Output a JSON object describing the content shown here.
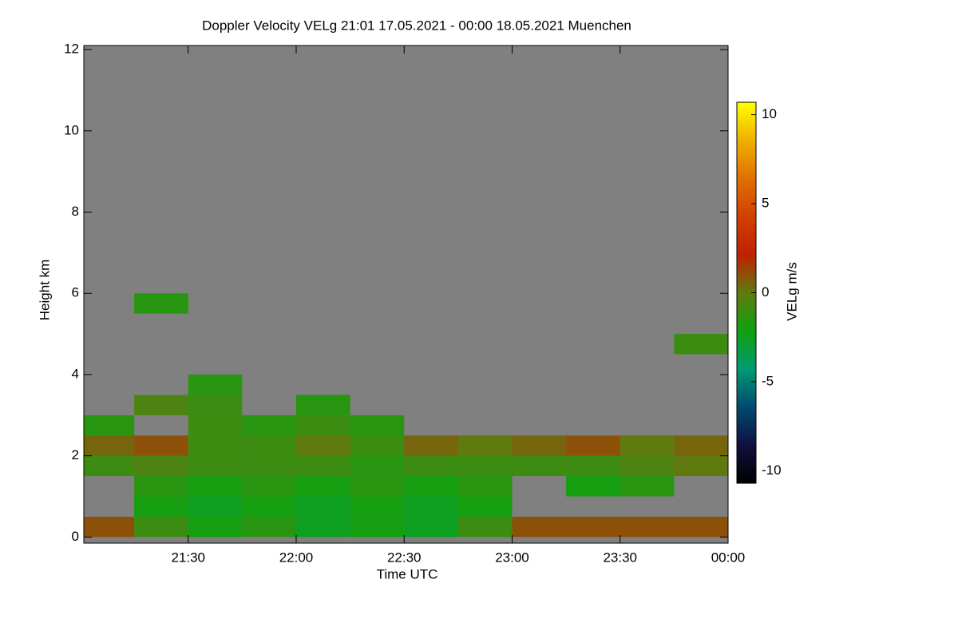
{
  "chart_data": {
    "type": "heatmap",
    "title": "Doppler Velocity VELg   21:01 17.05.2021 - 00:00 18.05.2021 Muenchen",
    "xlabel": "Time UTC",
    "ylabel": "Height km",
    "colorbar_label": "VELg m/s",
    "xlim": [
      21.0167,
      24
    ],
    "ylim": [
      -0.15,
      12.1
    ],
    "xticks": [
      {
        "value": 21.5,
        "label": "21:30"
      },
      {
        "value": 22,
        "label": "22:00"
      },
      {
        "value": 22.5,
        "label": "22:30"
      },
      {
        "value": 23,
        "label": "23:00"
      },
      {
        "value": 23.5,
        "label": "23:30"
      },
      {
        "value": 24,
        "label": "00:00"
      }
    ],
    "yticks": [
      0,
      2,
      4,
      6,
      8,
      10,
      12
    ],
    "xbins": [
      21.0167,
      21.25,
      21.5,
      21.75,
      22,
      22.25,
      22.5,
      22.75,
      23,
      23.25,
      23.5,
      23.75,
      24
    ],
    "ybins": [
      0,
      0.5,
      1,
      1.5,
      2,
      2.5,
      3,
      3.5,
      4,
      4.5,
      5,
      5.5,
      6
    ],
    "z": [
      [
        1,
        -1,
        -2,
        -1.5,
        -2.5,
        -2,
        -2.5,
        -1,
        1,
        1,
        1,
        1
      ],
      [
        null,
        -2,
        -2.5,
        -2,
        -2.5,
        -2,
        -2.5,
        -2,
        null,
        null,
        null,
        null
      ],
      [
        null,
        -1.5,
        -2,
        -1.5,
        -2,
        -1.5,
        -2,
        -1.5,
        null,
        -2,
        -1.5,
        null
      ],
      [
        -1,
        -0.5,
        -1,
        -1,
        -1,
        -1.5,
        -1,
        -1,
        -1,
        -1,
        -0.5,
        0
      ],
      [
        0.5,
        1,
        -1,
        -1,
        0,
        -1,
        0.5,
        0,
        0.5,
        1,
        0,
        0.5
      ],
      [
        -1.5,
        null,
        -1,
        -1.5,
        -1,
        -1.5,
        null,
        null,
        null,
        null,
        null,
        null
      ],
      [
        null,
        -0.5,
        -1,
        null,
        -1.5,
        null,
        null,
        null,
        null,
        null,
        null,
        null
      ],
      [
        null,
        null,
        -1.5,
        null,
        null,
        null,
        null,
        null,
        null,
        null,
        null,
        null
      ],
      [
        null,
        null,
        null,
        null,
        null,
        null,
        null,
        null,
        null,
        null,
        null,
        null
      ],
      [
        null,
        null,
        null,
        null,
        null,
        null,
        null,
        null,
        null,
        null,
        null,
        -1
      ],
      [
        null,
        null,
        null,
        null,
        null,
        null,
        null,
        null,
        null,
        null,
        null,
        null
      ],
      [
        null,
        -1.5,
        null,
        null,
        null,
        null,
        null,
        null,
        null,
        null,
        null,
        null
      ]
    ],
    "clim": [
      -10.7,
      10.7
    ],
    "cticks": [
      -10,
      -5,
      0,
      5,
      10
    ],
    "background": "#808080",
    "colormap": [
      "#000000",
      "#101040",
      "#004a70",
      "#009a70",
      "#10a010",
      "#607a10",
      "#c02000",
      "#d04000",
      "#e07000",
      "#f0b000",
      "#ffff00"
    ]
  }
}
